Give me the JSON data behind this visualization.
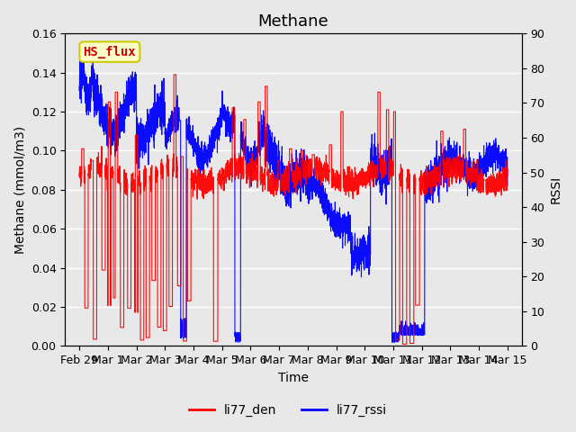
{
  "title": "Methane",
  "xlabel": "Time",
  "ylabel_left": "Methane (mmol/m3)",
  "ylabel_right": "RSSI",
  "ylim_left": [
    0.0,
    0.16
  ],
  "ylim_right": [
    0,
    90
  ],
  "yticks_left": [
    0.0,
    0.02,
    0.04,
    0.06,
    0.08,
    0.1,
    0.12,
    0.14,
    0.16
  ],
  "yticks_right": [
    0,
    10,
    20,
    30,
    40,
    50,
    60,
    70,
    80,
    90
  ],
  "x_tick_positions": [
    0,
    1,
    2,
    3,
    4,
    5,
    6,
    7,
    8,
    9,
    10,
    11,
    12,
    13,
    14,
    15
  ],
  "x_tick_labels": [
    "Feb 29",
    "Mar 1",
    "Mar 2",
    "Mar 3",
    "Mar 4",
    "Mar 5",
    "Mar 6",
    "Mar 7",
    "Mar 8",
    "Mar 9",
    "Mar 10",
    "Mar 11",
    "Mar 12",
    "Mar 13",
    "Mar 14",
    "Mar 15"
  ],
  "xlim": [
    -0.5,
    15.5
  ],
  "background_color": "#e8e8e8",
  "plot_bg_color": "#e8e8e8",
  "line_color_red": "#ff0000",
  "line_color_blue": "#0000ff",
  "annotation_text": "HS_flux",
  "annotation_bg": "#ffffcc",
  "annotation_border": "#cccc00",
  "legend_red_label": "li77_den",
  "legend_blue_label": "li77_rssi",
  "grid_color": "#ffffff",
  "title_fontsize": 13,
  "label_fontsize": 10,
  "tick_fontsize": 9
}
